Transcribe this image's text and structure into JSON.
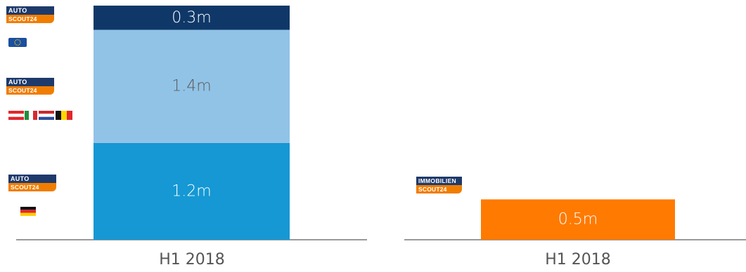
{
  "chart_data": [
    {
      "type": "bar",
      "stacked": true,
      "categories": [
        "H1 2018"
      ],
      "series": [
        {
          "values": [
            1.2
          ],
          "label": "1.2m",
          "color": "#1598d4",
          "text_color": "#ffffff"
        },
        {
          "values": [
            1.4
          ],
          "label": "1.4m",
          "color": "#91c3e6",
          "text_color": "#5a5a5a"
        },
        {
          "values": [
            0.3
          ],
          "label": "0.3m",
          "color": "#0f3868",
          "text_color": "#ffffff"
        }
      ],
      "unit": "m",
      "ylim": [
        0,
        2.9
      ],
      "grid": false,
      "legend": "none"
    },
    {
      "type": "bar",
      "stacked": true,
      "categories": [
        "H1 2018"
      ],
      "series": [
        {
          "values": [
            0.5
          ],
          "label": "0.5m",
          "color": "#ff7a00",
          "text_color": "#ffffff"
        }
      ],
      "unit": "m",
      "ylim": [
        0,
        2.9
      ],
      "grid": false,
      "legend": "none"
    }
  ],
  "logos": {
    "autoscout_top": "AUTO",
    "autoscout_bottom": "SCOUT24",
    "immo_top": "IMMOBILIEN",
    "immo_bottom": "SCOUT24"
  },
  "logo_rows": [
    {
      "name": "autoscout24-europe",
      "flag": "eu-flag-icon"
    },
    {
      "name": "autoscout24-international",
      "flag": "country-flags-icon"
    },
    {
      "name": "autoscout24-germany",
      "flag": "germany-flag-icon"
    }
  ],
  "colors": {
    "navy": "#0f3868",
    "light_blue": "#91c3e6",
    "blue": "#1598d4",
    "orange": "#ff7a00",
    "axis": "#333333"
  }
}
